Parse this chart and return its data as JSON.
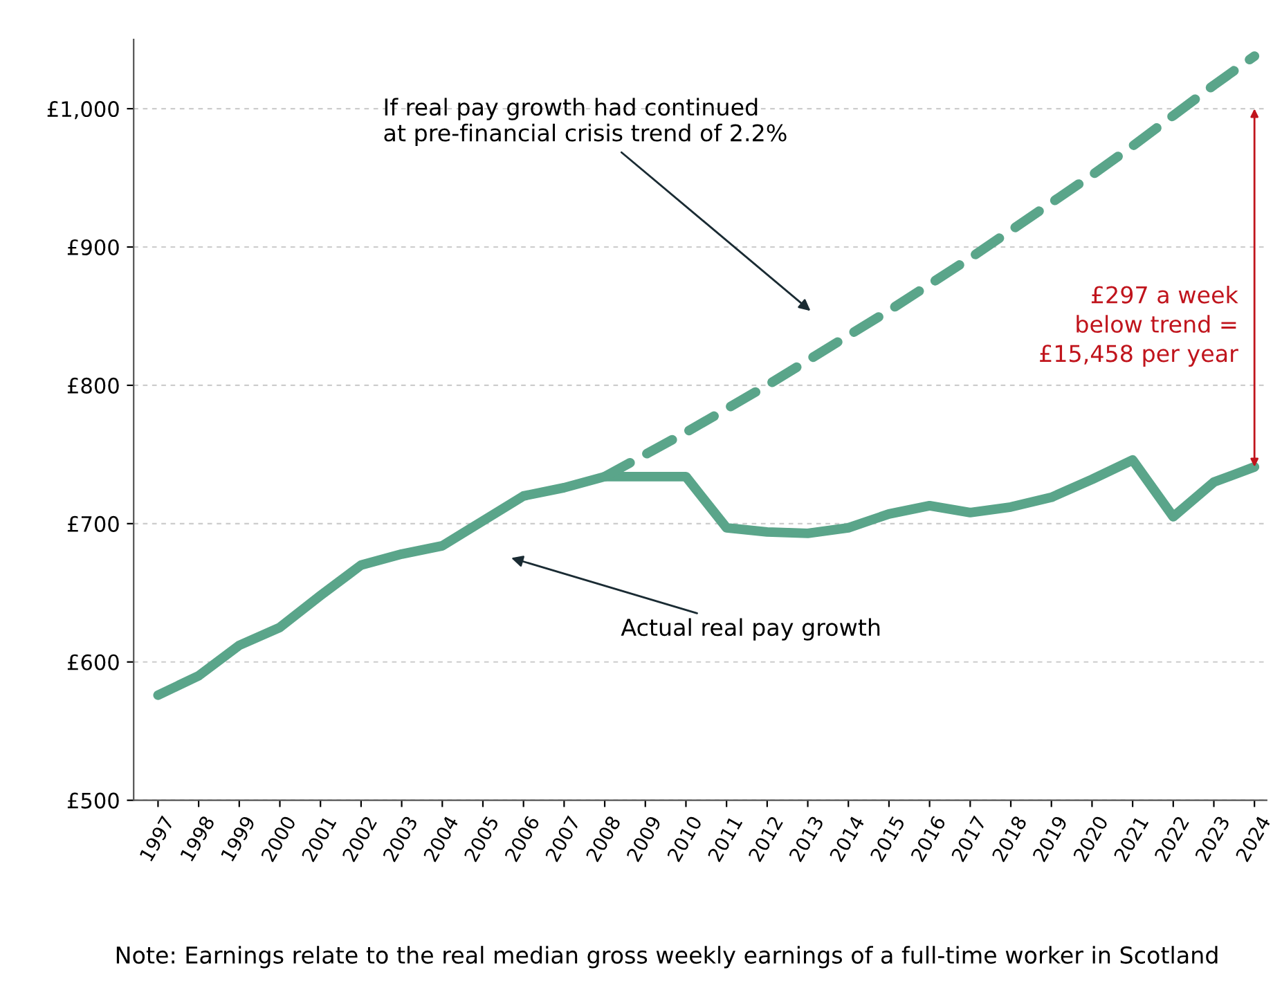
{
  "chart_data": {
    "type": "line",
    "xlim": [
      1996.4,
      2024.3
    ],
    "ylim": [
      500,
      1050
    ],
    "xticks": [
      1997,
      1998,
      1999,
      2000,
      2001,
      2002,
      2003,
      2004,
      2005,
      2006,
      2007,
      2008,
      2009,
      2010,
      2011,
      2012,
      2013,
      2014,
      2015,
      2016,
      2017,
      2018,
      2019,
      2020,
      2021,
      2022,
      2023,
      2024
    ],
    "yticks": [
      {
        "value": 500,
        "label": "£500"
      },
      {
        "value": 600,
        "label": "£600"
      },
      {
        "value": 700,
        "label": "£700"
      },
      {
        "value": 800,
        "label": "£800"
      },
      {
        "value": 900,
        "label": "£900"
      },
      {
        "value": 1000,
        "label": "£1,000"
      }
    ],
    "grid": "y",
    "legend": false,
    "series": [
      {
        "color": "#5aa58a",
        "line_style": "solid",
        "x": [
          1997,
          1998,
          1999,
          2000,
          2001,
          2002,
          2003,
          2004,
          2005,
          2006,
          2007,
          2008,
          2009,
          2010,
          2011,
          2012,
          2013,
          2014,
          2015,
          2016,
          2017,
          2018,
          2019,
          2020,
          2021,
          2022,
          2023,
          2024
        ],
        "values": [
          576,
          590,
          612,
          625,
          648,
          670,
          678,
          684,
          702,
          720,
          726,
          734,
          734,
          734,
          697,
          694,
          693,
          697,
          707,
          713,
          708,
          712,
          719,
          732,
          746,
          705,
          730,
          741
        ]
      },
      {
        "color": "#5aa58a",
        "line_style": "dashed",
        "x": [
          2008,
          2009,
          2010,
          2011,
          2012,
          2013,
          2014,
          2015,
          2016,
          2017,
          2018,
          2019,
          2020,
          2021,
          2022,
          2023,
          2024
        ],
        "values": [
          734,
          750,
          766,
          783,
          800,
          818,
          836,
          854,
          873,
          892,
          912,
          932,
          952,
          973,
          995,
          1017,
          1038
        ]
      }
    ],
    "annotations": [
      "If real pay growth had continued\nat pre-financial crisis trend of 2.2%",
      "Actual real pay growth",
      "£297 a week\nbelow trend =\n£15,458 per year",
      "Note: Earnings relate to the real median gross weekly earnings of a full-time worker in Scotland"
    ]
  }
}
